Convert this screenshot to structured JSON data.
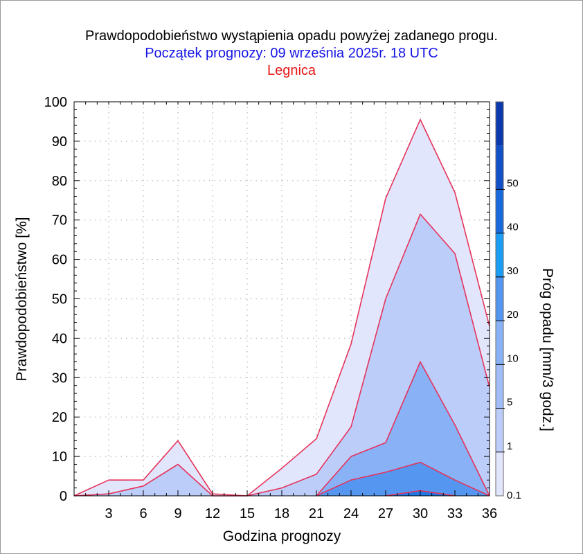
{
  "header": {
    "title": "Prawdopodobieństwo wystąpienia opadu powyżej zadanego progu.",
    "subtitle": "Początek prognozy: 09 września 2025r. 18 UTC",
    "location": "Legnica"
  },
  "colors": {
    "title": "#000000",
    "subtitle": "#1414e6",
    "location": "#e61414",
    "series_line": "#e6325a"
  },
  "chart_data": {
    "type": "area",
    "title": "Prawdopodobieństwo wystąpienia opadu powyżej zadanego progu.",
    "xlabel": "Godzina prognozy",
    "ylabel": "Prawdopodobieństwo [%]",
    "xlim": [
      0,
      36
    ],
    "ylim": [
      0,
      100
    ],
    "x_ticks": [
      3,
      6,
      9,
      12,
      15,
      18,
      21,
      24,
      27,
      30,
      33,
      36
    ],
    "y_ticks": [
      0,
      10,
      20,
      30,
      40,
      50,
      60,
      70,
      80,
      90,
      100
    ],
    "grid": true,
    "x": [
      0,
      3,
      6,
      9,
      12,
      15,
      18,
      21,
      24,
      27,
      30,
      33,
      36
    ],
    "series": [
      {
        "threshold": 0.1,
        "color": "#e2e6fc",
        "values": [
          0,
          4,
          4,
          14,
          0.5,
          0,
          7,
          14.5,
          38.5,
          75.5,
          95.5,
          77,
          43
        ]
      },
      {
        "threshold": 1,
        "color": "#bccdfa",
        "values": [
          0,
          0.5,
          2.5,
          8,
          0,
          0,
          2,
          5.5,
          17.5,
          50,
          71.5,
          61.5,
          27.5
        ]
      },
      {
        "threshold": 5,
        "color": "#88b1f6",
        "values": [
          null,
          null,
          null,
          null,
          null,
          null,
          null,
          0,
          10,
          13.5,
          34,
          18,
          0
        ]
      },
      {
        "threshold": 10,
        "color": "#5596f1",
        "values": [
          null,
          null,
          null,
          null,
          null,
          null,
          null,
          0,
          4,
          6,
          8.5,
          4,
          0
        ]
      },
      {
        "threshold": 20,
        "color": "#1f7ae8",
        "values": [
          null,
          null,
          null,
          null,
          null,
          null,
          null,
          null,
          null,
          0,
          1.3,
          0,
          null
        ]
      }
    ],
    "colorbar": {
      "label": "Próg opadu [mm/3 godz.]",
      "levels": [
        "0.1",
        "1",
        "5",
        "10",
        "20",
        "30",
        "40",
        "50"
      ],
      "colors": [
        "#e2e6fc",
        "#bccdfa",
        "#a0bdf8",
        "#88b1f6",
        "#5596f1",
        "#1b9df5",
        "#1769dc",
        "#1250c8",
        "#0c38ad"
      ]
    }
  }
}
